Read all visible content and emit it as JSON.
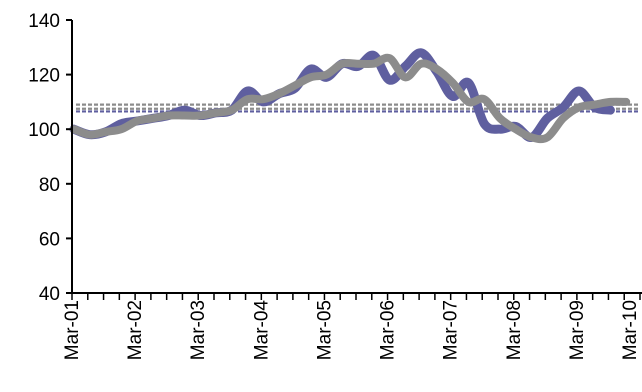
{
  "chart_data": {
    "type": "line",
    "title": "",
    "xlabel": "",
    "ylabel": "",
    "ylim": [
      40,
      140
    ],
    "yticks": [
      40,
      60,
      80,
      100,
      120,
      140
    ],
    "xtick_labels": [
      "Mar-01",
      "Mar-02",
      "Mar-03",
      "Mar-04",
      "Mar-05",
      "Mar-06",
      "Mar-07",
      "Mar-08",
      "Mar-09",
      "Mar-10"
    ],
    "x_period": "quarterly",
    "x_start": "Mar-01",
    "grid": false,
    "legend": "none",
    "series": [
      {
        "color": "#5f5f9f",
        "values": [
          100,
          98,
          99,
          102,
          103,
          104,
          105,
          107,
          105,
          106,
          107,
          114,
          110,
          113,
          115,
          122,
          119,
          124,
          123,
          127,
          118,
          123,
          128,
          121,
          112,
          117,
          102,
          100,
          101,
          97,
          104,
          108,
          114,
          108,
          107
        ]
      },
      {
        "color": "#8c8c8c",
        "values": [
          100,
          98,
          99,
          100,
          103,
          104,
          105,
          105,
          105,
          106,
          107,
          111,
          111,
          113,
          116,
          119,
          120,
          124,
          124,
          124,
          126,
          119,
          124,
          122,
          117,
          110,
          111,
          104,
          100,
          97,
          97,
          104,
          108,
          109,
          110,
          110
        ]
      }
    ],
    "reference_lines": [
      {
        "y": 109,
        "color": "#8c8c8c",
        "style": "dashed"
      },
      {
        "y": 107.5,
        "color": "#8c8c8c",
        "style": "dashed"
      },
      {
        "y": 106.5,
        "color": "#5f5f9f",
        "style": "dashed"
      }
    ],
    "axis_color": "#000000"
  }
}
